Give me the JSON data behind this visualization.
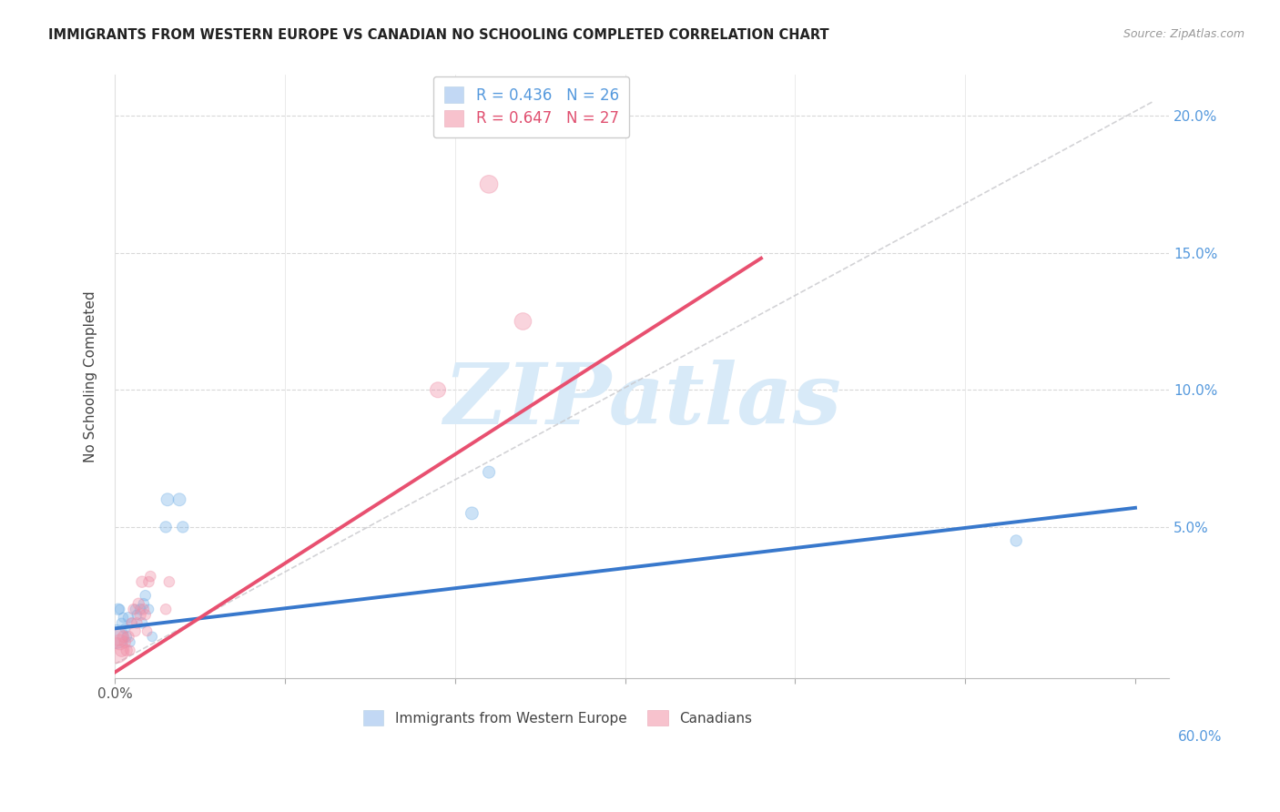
{
  "title": "IMMIGRANTS FROM WESTERN EUROPE VS CANADIAN NO SCHOOLING COMPLETED CORRELATION CHART",
  "source": "Source: ZipAtlas.com",
  "ylabel": "No Schooling Completed",
  "xlim": [
    0.0,
    0.62
  ],
  "ylim": [
    -0.005,
    0.215
  ],
  "blue_color": "#7ab4e8",
  "pink_color": "#f090a8",
  "blue_line_color": "#3878cc",
  "pink_line_color": "#e85070",
  "ref_line_color": "#c8c8cc",
  "watermark": "ZIPatlas",
  "watermark_color": "#d8eaf8",
  "blue_R": "R = 0.436",
  "blue_N": "N = 26",
  "pink_R": "R = 0.647",
  "pink_N": "N = 27",
  "legend_label_blue": "Immigrants from Western Europe",
  "legend_label_pink": "Canadians",
  "blue_scatter_x": [
    0.001,
    0.002,
    0.003,
    0.004,
    0.005,
    0.006,
    0.007,
    0.008,
    0.009,
    0.01,
    0.012,
    0.013,
    0.015,
    0.016,
    0.017,
    0.018,
    0.02,
    0.022,
    0.03,
    0.031,
    0.038,
    0.04,
    0.21,
    0.22,
    0.53
  ],
  "blue_scatter_y": [
    0.01,
    0.02,
    0.02,
    0.015,
    0.017,
    0.013,
    0.01,
    0.017,
    0.008,
    0.015,
    0.02,
    0.018,
    0.02,
    0.015,
    0.022,
    0.025,
    0.02,
    0.01,
    0.05,
    0.06,
    0.06,
    0.05,
    0.055,
    0.07,
    0.045
  ],
  "blue_scatter_sizes": [
    350,
    80,
    60,
    60,
    60,
    60,
    60,
    70,
    60,
    60,
    60,
    60,
    70,
    70,
    70,
    70,
    60,
    60,
    80,
    100,
    100,
    80,
    100,
    90,
    80
  ],
  "pink_scatter_x": [
    0.001,
    0.002,
    0.003,
    0.004,
    0.005,
    0.006,
    0.007,
    0.008,
    0.009,
    0.01,
    0.011,
    0.012,
    0.013,
    0.014,
    0.015,
    0.016,
    0.017,
    0.018,
    0.019,
    0.02,
    0.021,
    0.03,
    0.032,
    0.19,
    0.22,
    0.24
  ],
  "pink_scatter_y": [
    0.005,
    0.01,
    0.008,
    0.005,
    0.01,
    0.008,
    0.005,
    0.01,
    0.005,
    0.015,
    0.02,
    0.012,
    0.015,
    0.022,
    0.018,
    0.03,
    0.02,
    0.018,
    0.012,
    0.03,
    0.032,
    0.02,
    0.03,
    0.1,
    0.175,
    0.125
  ],
  "pink_scatter_sizes": [
    400,
    200,
    150,
    100,
    80,
    80,
    80,
    80,
    60,
    70,
    70,
    70,
    70,
    80,
    80,
    80,
    70,
    70,
    60,
    70,
    70,
    70,
    70,
    150,
    200,
    180
  ],
  "blue_line_x": [
    0.0,
    0.6
  ],
  "blue_line_y": [
    0.013,
    0.057
  ],
  "pink_line_x": [
    0.0,
    0.38
  ],
  "pink_line_y": [
    -0.003,
    0.148
  ],
  "ref_line_x": [
    0.0,
    0.61
  ],
  "ref_line_y": [
    0.0,
    0.205
  ]
}
